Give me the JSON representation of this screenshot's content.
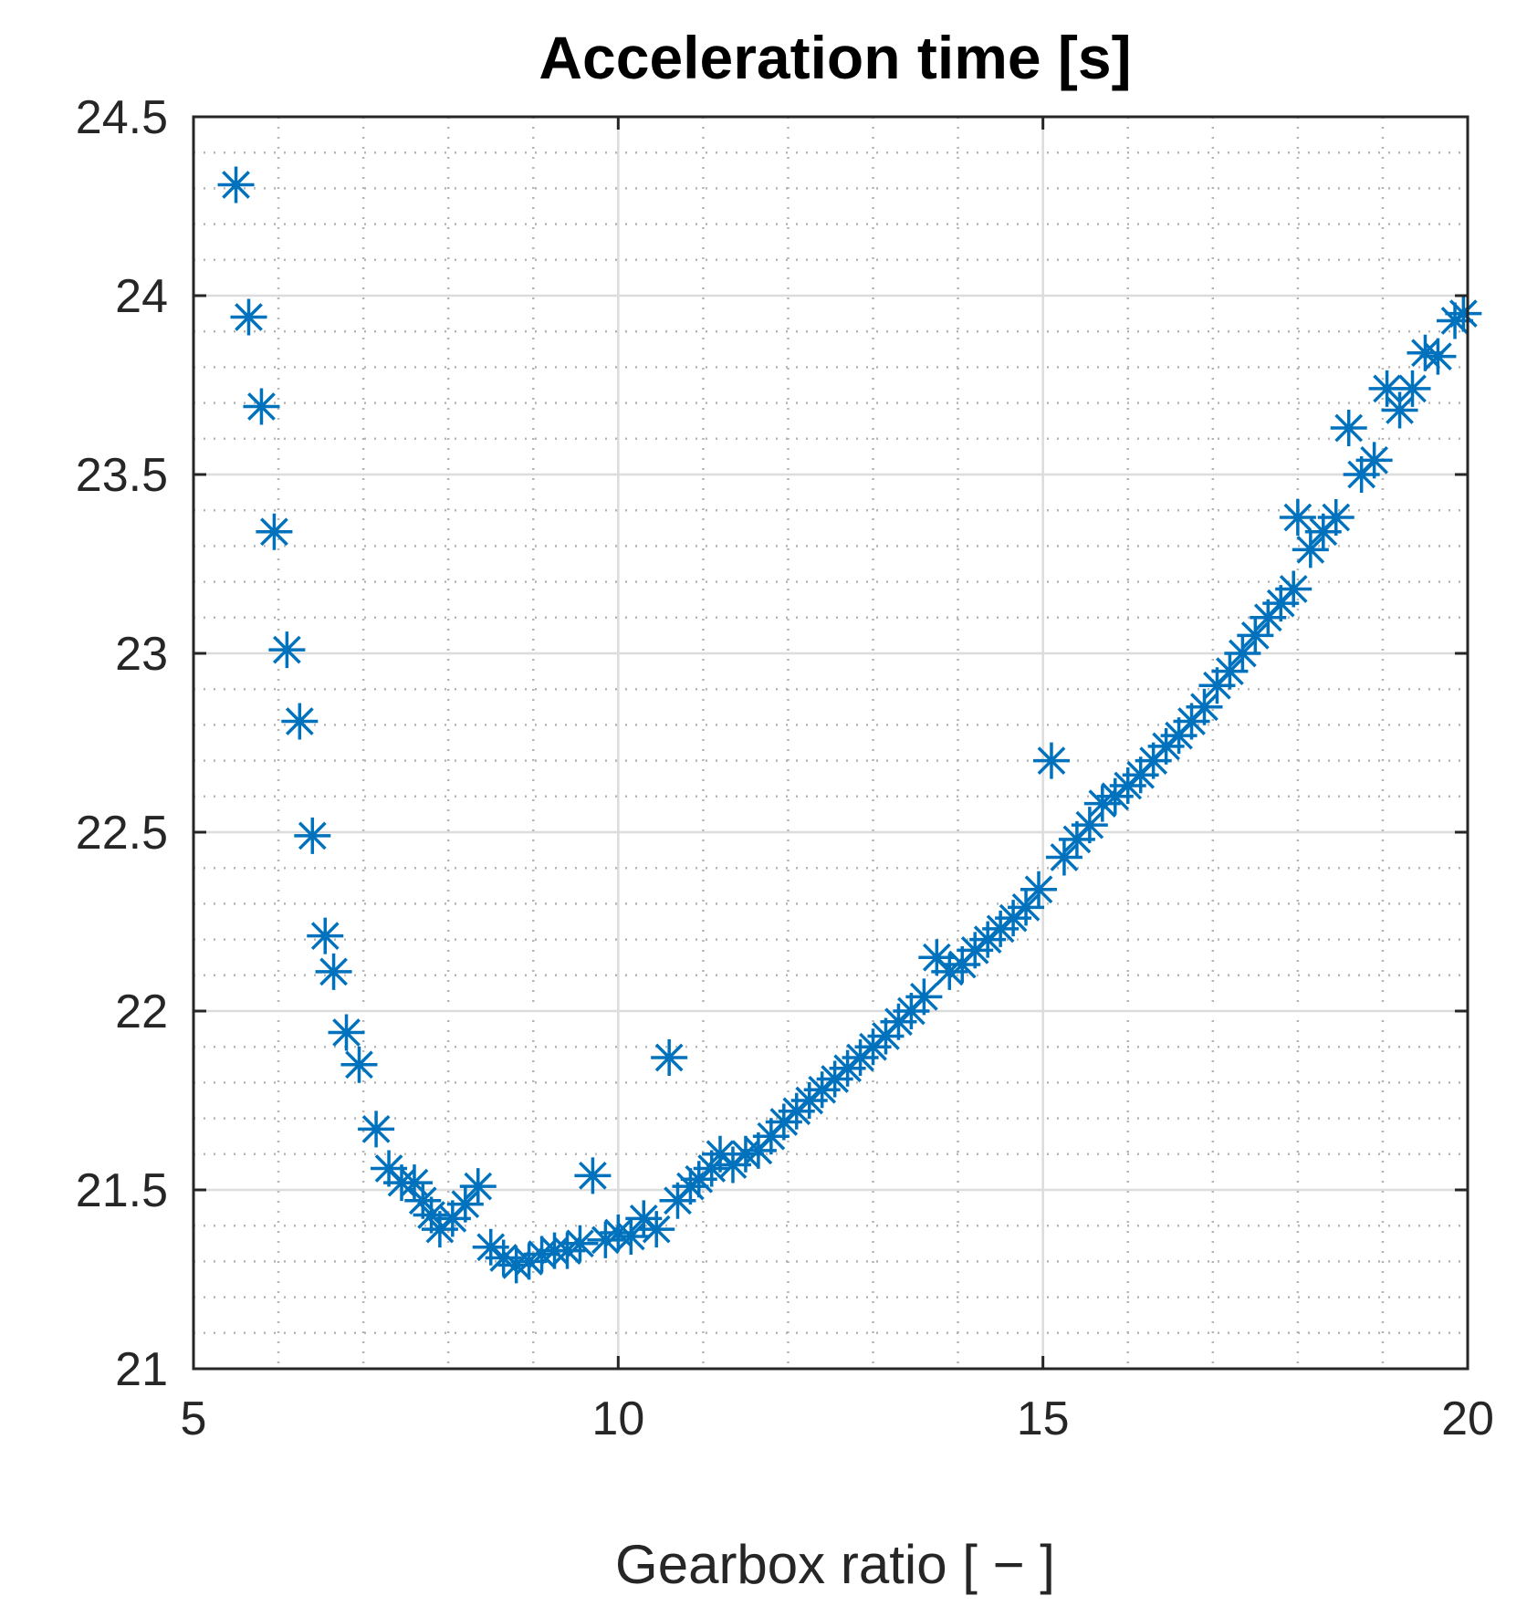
{
  "chart_data": {
    "type": "scatter",
    "title": "Acceleration time [s]",
    "xlabel": "Gearbox ratio [ − ]",
    "ylabel": "",
    "xlim": [
      5,
      20
    ],
    "ylim": [
      21,
      24.5
    ],
    "xticks": [
      5,
      10,
      15,
      20
    ],
    "xtick_labels": [
      "5",
      "10",
      "15",
      "20"
    ],
    "yticks": [
      21,
      21.5,
      22,
      22.5,
      23,
      23.5,
      24,
      24.5
    ],
    "ytick_labels": [
      "21",
      "21.5",
      "22",
      "22.5",
      "23",
      "23.5",
      "24",
      "24.5"
    ],
    "x_minor_step": 1,
    "y_minor_step": 0.1,
    "grid": true,
    "marker": "asterisk",
    "series": [
      {
        "color": "#0072BD",
        "points": [
          [
            5.5,
            24.31
          ],
          [
            5.65,
            23.94
          ],
          [
            5.8,
            23.69
          ],
          [
            5.95,
            23.34
          ],
          [
            6.1,
            23.01
          ],
          [
            6.25,
            22.81
          ],
          [
            6.4,
            22.49
          ],
          [
            6.55,
            22.21
          ],
          [
            6.65,
            22.11
          ],
          [
            6.8,
            21.94
          ],
          [
            6.95,
            21.85
          ],
          [
            7.15,
            21.67
          ],
          [
            7.3,
            21.56
          ],
          [
            7.45,
            21.52
          ],
          [
            7.6,
            21.52
          ],
          [
            7.7,
            21.47
          ],
          [
            7.8,
            21.43
          ],
          [
            7.9,
            21.39
          ],
          [
            8.05,
            21.42
          ],
          [
            8.2,
            21.46
          ],
          [
            8.35,
            21.51
          ],
          [
            8.5,
            21.34
          ],
          [
            8.65,
            21.31
          ],
          [
            8.8,
            21.29
          ],
          [
            8.95,
            21.3
          ],
          [
            9.1,
            21.32
          ],
          [
            9.25,
            21.33
          ],
          [
            9.4,
            21.33
          ],
          [
            9.55,
            21.35
          ],
          [
            9.7,
            21.54
          ],
          [
            9.85,
            21.36
          ],
          [
            10.0,
            21.38
          ],
          [
            10.15,
            21.37
          ],
          [
            10.3,
            21.42
          ],
          [
            10.45,
            21.39
          ],
          [
            10.6,
            21.87
          ],
          [
            10.7,
            21.47
          ],
          [
            10.85,
            21.51
          ],
          [
            10.95,
            21.53
          ],
          [
            11.1,
            21.56
          ],
          [
            11.2,
            21.6
          ],
          [
            11.35,
            21.57
          ],
          [
            11.5,
            21.6
          ],
          [
            11.65,
            21.61
          ],
          [
            11.8,
            21.65
          ],
          [
            11.95,
            21.69
          ],
          [
            12.1,
            21.72
          ],
          [
            12.25,
            21.75
          ],
          [
            12.4,
            21.78
          ],
          [
            12.55,
            21.81
          ],
          [
            12.7,
            21.84
          ],
          [
            12.85,
            21.87
          ],
          [
            13.0,
            21.9
          ],
          [
            13.15,
            21.93
          ],
          [
            13.3,
            21.97
          ],
          [
            13.45,
            22.0
          ],
          [
            13.6,
            22.04
          ],
          [
            13.75,
            22.15
          ],
          [
            13.9,
            22.11
          ],
          [
            14.05,
            22.13
          ],
          [
            14.2,
            22.17
          ],
          [
            14.35,
            22.2
          ],
          [
            14.5,
            22.23
          ],
          [
            14.65,
            22.26
          ],
          [
            14.8,
            22.29
          ],
          [
            14.95,
            22.34
          ],
          [
            15.1,
            22.7
          ],
          [
            15.25,
            22.43
          ],
          [
            15.4,
            22.48
          ],
          [
            15.55,
            22.52
          ],
          [
            15.7,
            22.58
          ],
          [
            15.85,
            22.6
          ],
          [
            16.0,
            22.63
          ],
          [
            16.15,
            22.66
          ],
          [
            16.3,
            22.7
          ],
          [
            16.45,
            22.74
          ],
          [
            16.6,
            22.77
          ],
          [
            16.75,
            22.81
          ],
          [
            16.9,
            22.85
          ],
          [
            17.05,
            22.91
          ],
          [
            17.2,
            22.95
          ],
          [
            17.35,
            23.0
          ],
          [
            17.5,
            23.05
          ],
          [
            17.65,
            23.1
          ],
          [
            17.8,
            23.14
          ],
          [
            17.95,
            23.18
          ],
          [
            18.0,
            23.38
          ],
          [
            18.15,
            23.29
          ],
          [
            18.3,
            23.34
          ],
          [
            18.45,
            23.38
          ],
          [
            18.6,
            23.63
          ],
          [
            18.75,
            23.5
          ],
          [
            18.9,
            23.54
          ],
          [
            19.05,
            23.74
          ],
          [
            19.2,
            23.68
          ],
          [
            19.35,
            23.74
          ],
          [
            19.5,
            23.84
          ],
          [
            19.65,
            23.83
          ],
          [
            19.85,
            23.93
          ],
          [
            19.95,
            23.95
          ]
        ]
      }
    ]
  }
}
